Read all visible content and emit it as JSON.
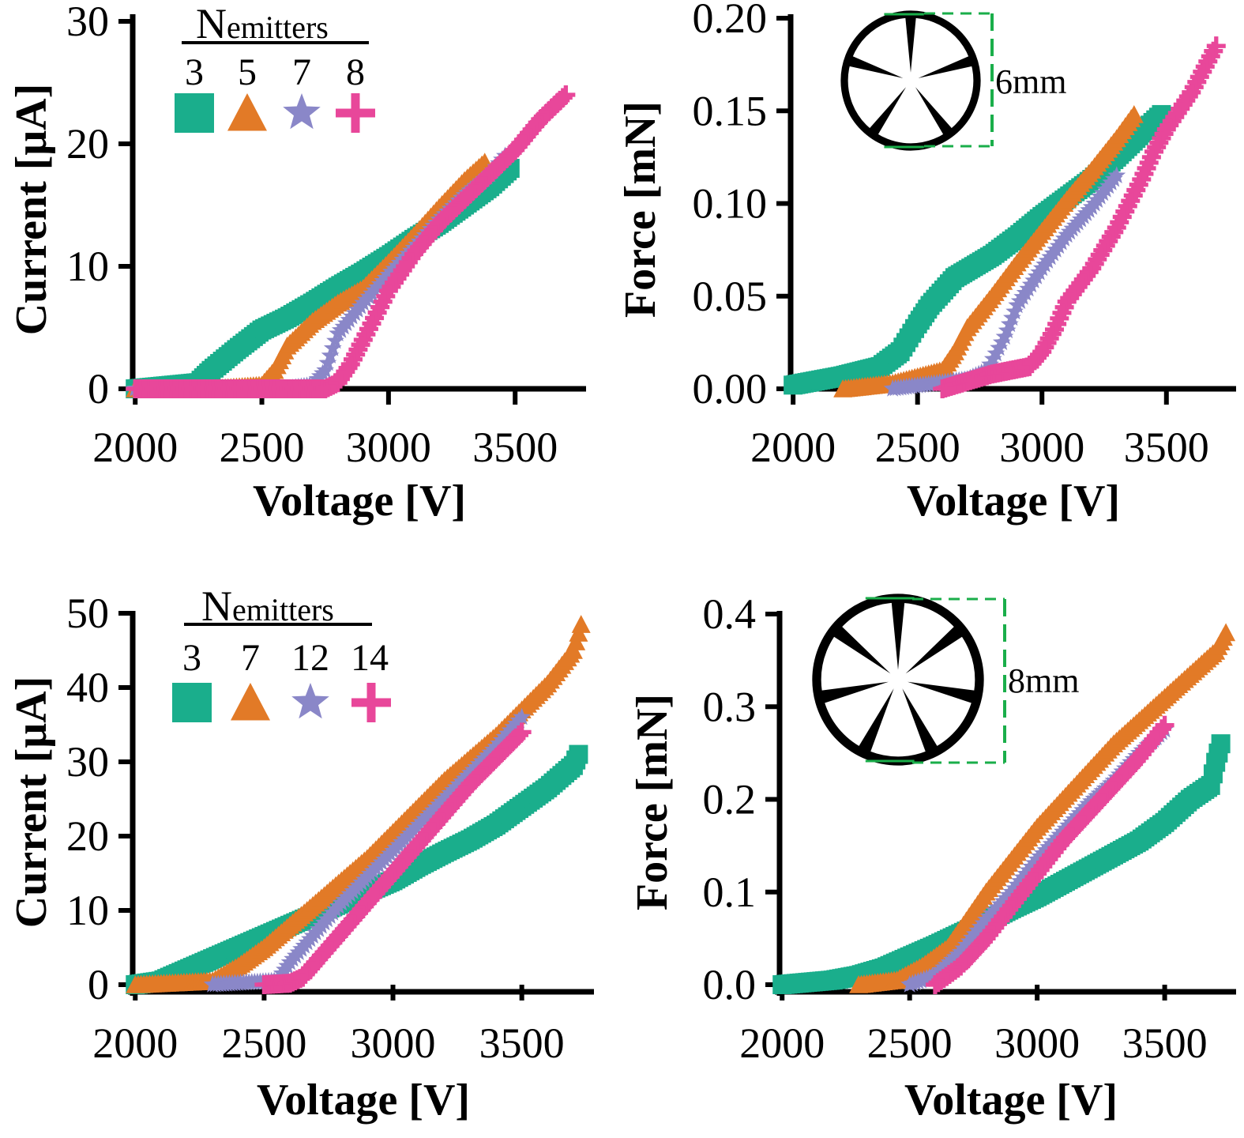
{
  "colors": {
    "green": "#1AAE8C",
    "orange": "#E27A27",
    "purple": "#8A87C8",
    "pink": "#E8479A",
    "axis": "#000000",
    "dashed": "#1AAE4A"
  },
  "chart_data": [
    {
      "id": "p1",
      "type": "scatter",
      "ylabel": "Current [μA]",
      "xlabel": "Voltage [V]",
      "xlim": [
        1990,
        3780
      ],
      "ylim": [
        0,
        30
      ],
      "xticks": [
        2000,
        2500,
        3000,
        3500
      ],
      "xtick_labels": [
        "2000",
        "2500",
        "3000",
        "3500"
      ],
      "yticks": [
        0,
        10,
        20,
        30
      ],
      "ytick_labels": [
        "0",
        "10",
        "20",
        "30"
      ],
      "legend": {
        "title_main": "N",
        "title_sub": "emitters",
        "labels": [
          "3",
          "5",
          "7",
          "8"
        ]
      },
      "series": [
        {
          "name": "3",
          "marker": "square",
          "color": "green",
          "x": [
            2000,
            2250,
            2300,
            2400,
            2500,
            2600,
            2700,
            2800,
            2900,
            3000,
            3100,
            3200,
            3300,
            3400,
            3480
          ],
          "y": [
            0,
            0.5,
            1.5,
            3.2,
            4.8,
            5.8,
            7.0,
            8.3,
            9.5,
            10.8,
            12.2,
            13.5,
            15.0,
            16.5,
            18
          ]
        },
        {
          "name": "5",
          "marker": "triangle",
          "color": "orange",
          "x": [
            2000,
            2300,
            2500,
            2550,
            2600,
            2700,
            2800,
            2900,
            3000,
            3100,
            3200,
            3300,
            3380
          ],
          "y": [
            0,
            0,
            0.3,
            1.5,
            3.5,
            5.5,
            7.0,
            8.2,
            10.3,
            12.5,
            14.8,
            17,
            18.5
          ]
        },
        {
          "name": "7",
          "marker": "star",
          "color": "purple",
          "x": [
            2000,
            2600,
            2700,
            2750,
            2800,
            2900,
            3000,
            3100,
            3200,
            3300,
            3400,
            3460
          ],
          "y": [
            0,
            0,
            0.3,
            1.5,
            4.5,
            7.0,
            9.3,
            11.5,
            13.8,
            15.8,
            17.5,
            19
          ]
        },
        {
          "name": "8",
          "marker": "plus",
          "color": "pink",
          "x": [
            2000,
            2750,
            2800,
            2850,
            2900,
            3000,
            3100,
            3200,
            3300,
            3400,
            3500,
            3600,
            3700
          ],
          "y": [
            0,
            0,
            0.5,
            2,
            4,
            8,
            11,
            13.5,
            15.5,
            17.5,
            19.5,
            22,
            24
          ]
        }
      ]
    },
    {
      "id": "p2",
      "type": "scatter",
      "ylabel": "Force [mN]",
      "xlabel": "Voltage [V]",
      "xlim": [
        1990,
        3780
      ],
      "ylim": [
        0,
        0.2
      ],
      "xticks": [
        2000,
        2500,
        3000,
        3500
      ],
      "xtick_labels": [
        "2000",
        "2500",
        "3000",
        "3500"
      ],
      "yticks": [
        0,
        0.05,
        0.1,
        0.15,
        0.2
      ],
      "ytick_labels": [
        "0.00",
        "0.05",
        "0.10",
        "0.15",
        "0.20"
      ],
      "inset": {
        "diameter_label": "6mm",
        "vanes": 5
      },
      "series": [
        {
          "name": "3",
          "marker": "square",
          "color": "green",
          "x": [
            2000,
            2200,
            2350,
            2430,
            2500,
            2550,
            2650,
            2800,
            2900,
            3000,
            3100,
            3200,
            3300,
            3400,
            3480
          ],
          "y": [
            0.002,
            0.007,
            0.012,
            0.02,
            0.035,
            0.045,
            0.06,
            0.072,
            0.082,
            0.093,
            0.103,
            0.113,
            0.125,
            0.138,
            0.148
          ]
        },
        {
          "name": "5",
          "marker": "triangle",
          "color": "orange",
          "x": [
            2200,
            2400,
            2600,
            2650,
            2700,
            2800,
            2900,
            3000,
            3100,
            3200,
            3300,
            3370
          ],
          "y": [
            0,
            0.003,
            0.01,
            0.02,
            0.033,
            0.05,
            0.068,
            0.085,
            0.102,
            0.118,
            0.135,
            0.148
          ]
        },
        {
          "name": "7",
          "marker": "star",
          "color": "purple",
          "x": [
            2400,
            2700,
            2780,
            2850,
            2900,
            3000,
            3100,
            3200,
            3300
          ],
          "y": [
            0,
            0.005,
            0.01,
            0.028,
            0.045,
            0.065,
            0.083,
            0.098,
            0.115
          ]
        },
        {
          "name": "8",
          "marker": "plus",
          "color": "pink",
          "x": [
            2600,
            2800,
            2950,
            3000,
            3050,
            3100,
            3200,
            3300,
            3400,
            3450,
            3500,
            3600,
            3700
          ],
          "y": [
            0,
            0.008,
            0.012,
            0.02,
            0.032,
            0.047,
            0.065,
            0.087,
            0.113,
            0.128,
            0.14,
            0.16,
            0.185
          ]
        }
      ]
    },
    {
      "id": "p3",
      "type": "scatter",
      "ylabel": "Current [μA]",
      "xlabel": "Voltage [V]",
      "xlim": [
        1990,
        3780
      ],
      "ylim": [
        0,
        50
      ],
      "xticks": [
        2000,
        2500,
        3000,
        3500
      ],
      "xtick_labels": [
        "2000",
        "2500",
        "3000",
        "3500"
      ],
      "yticks": [
        0,
        10,
        20,
        30,
        40,
        50
      ],
      "ytick_labels": [
        "0",
        "10",
        "20",
        "30",
        "40",
        "50"
      ],
      "legend": {
        "title_main": "N",
        "title_sub": "emitters",
        "labels": [
          "3",
          "7",
          "12",
          "14"
        ]
      },
      "series": [
        {
          "name": "3",
          "marker": "square",
          "color": "green",
          "x": [
            2000,
            2100,
            2200,
            2300,
            2400,
            2500,
            2600,
            2700,
            2800,
            2900,
            3000,
            3100,
            3200,
            3300,
            3400,
            3500,
            3600,
            3700,
            3720
          ],
          "y": [
            0,
            0.5,
            2,
            3.5,
            5,
            6.5,
            8,
            9.5,
            11,
            12.5,
            14,
            16,
            17.8,
            19.5,
            21.5,
            24,
            26.5,
            29.5,
            31
          ]
        },
        {
          "name": "7",
          "marker": "triangle",
          "color": "orange",
          "x": [
            2000,
            2300,
            2400,
            2500,
            2600,
            2700,
            2800,
            2900,
            3000,
            3100,
            3200,
            3300,
            3400,
            3500,
            3600,
            3700,
            3730
          ],
          "y": [
            0,
            0.5,
            2.5,
            5,
            8,
            11,
            14,
            17,
            20.5,
            24,
            27.5,
            30.5,
            33.5,
            37,
            40.5,
            45,
            48.5
          ]
        },
        {
          "name": "12",
          "marker": "star",
          "color": "purple",
          "x": [
            2300,
            2550,
            2600,
            2700,
            2800,
            2900,
            3000,
            3100,
            3200,
            3300,
            3400,
            3500
          ],
          "y": [
            0,
            0.5,
            3,
            7,
            11,
            14.5,
            18,
            21.5,
            25,
            28.5,
            32,
            36
          ]
        },
        {
          "name": "14",
          "marker": "plus",
          "color": "pink",
          "x": [
            2500,
            2600,
            2650,
            2700,
            2800,
            2900,
            3000,
            3100,
            3200,
            3300,
            3400,
            3500
          ],
          "y": [
            0,
            0.2,
            1,
            3,
            7,
            11,
            15,
            19,
            23,
            27,
            30.5,
            34
          ]
        }
      ]
    },
    {
      "id": "p4",
      "type": "scatter",
      "ylabel": "Force [mN]",
      "xlabel": "Voltage [V]",
      "xlim": [
        1990,
        3780
      ],
      "ylim": [
        0,
        0.4
      ],
      "xticks": [
        2000,
        2500,
        3000,
        3500
      ],
      "xtick_labels": [
        "2000",
        "2500",
        "3000",
        "3500"
      ],
      "yticks": [
        0,
        0.1,
        0.2,
        0.3,
        0.4
      ],
      "ytick_labels": [
        "0.0",
        "0.1",
        "0.2",
        "0.3",
        "0.4"
      ],
      "inset": {
        "diameter_label": "8mm",
        "vanes": 7
      },
      "series": [
        {
          "name": "3",
          "marker": "square",
          "color": "green",
          "x": [
            2000,
            2200,
            2300,
            2400,
            2500,
            2600,
            2700,
            2800,
            2900,
            3000,
            3100,
            3200,
            3300,
            3400,
            3500,
            3600,
            3680,
            3700,
            3720
          ],
          "y": [
            0,
            0.005,
            0.01,
            0.018,
            0.03,
            0.042,
            0.055,
            0.068,
            0.082,
            0.095,
            0.11,
            0.125,
            0.14,
            0.155,
            0.175,
            0.2,
            0.215,
            0.24,
            0.26
          ]
        },
        {
          "name": "7",
          "marker": "triangle",
          "color": "orange",
          "x": [
            2300,
            2450,
            2550,
            2650,
            2700,
            2800,
            2900,
            3000,
            3100,
            3200,
            3300,
            3400,
            3500,
            3600,
            3700,
            3740
          ],
          "y": [
            0,
            0.005,
            0.02,
            0.04,
            0.06,
            0.1,
            0.135,
            0.17,
            0.2,
            0.23,
            0.26,
            0.285,
            0.31,
            0.335,
            0.36,
            0.38
          ]
        },
        {
          "name": "12",
          "marker": "star",
          "color": "purple",
          "x": [
            2500,
            2600,
            2700,
            2800,
            2900,
            3000,
            3100,
            3200,
            3300,
            3400,
            3500
          ],
          "y": [
            0,
            0.01,
            0.035,
            0.07,
            0.1,
            0.135,
            0.165,
            0.195,
            0.22,
            0.25,
            0.275
          ]
        },
        {
          "name": "14",
          "marker": "plus",
          "color": "pink",
          "x": [
            2600,
            2700,
            2800,
            2900,
            3000,
            3100,
            3200,
            3300,
            3400,
            3500
          ],
          "y": [
            0,
            0.02,
            0.05,
            0.085,
            0.12,
            0.155,
            0.185,
            0.215,
            0.245,
            0.28
          ]
        }
      ]
    }
  ]
}
